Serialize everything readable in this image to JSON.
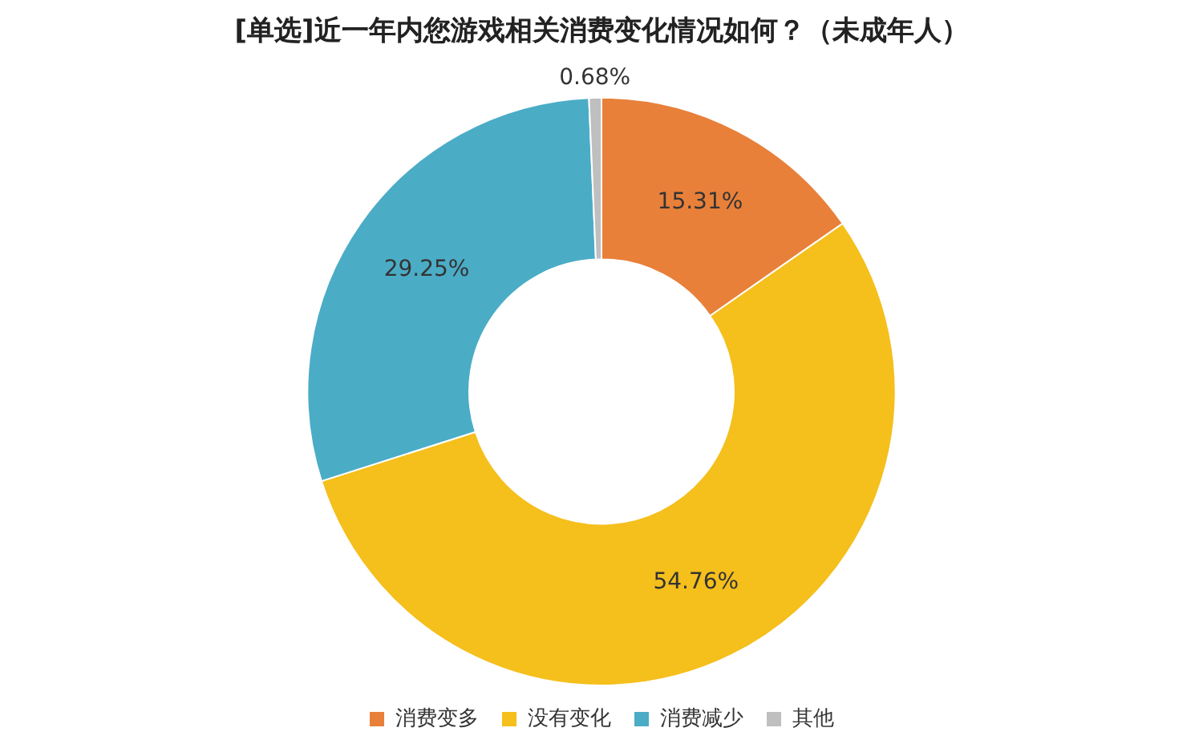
{
  "chart_data": {
    "type": "donut",
    "title": "[单选]近一年内您游戏相关消费变化情况如何？（未成年人）",
    "categories": [
      "消费变多",
      "没有变化",
      "消费减少",
      "其他"
    ],
    "values": [
      15.31,
      54.76,
      29.25,
      0.68
    ],
    "colors": [
      "#e8803a",
      "#f5bf1c",
      "#4bacc6",
      "#bfbfbf"
    ],
    "value_labels": [
      "15.31%",
      "54.76%",
      "29.25%",
      "0.68%"
    ],
    "legend": "bottom"
  }
}
